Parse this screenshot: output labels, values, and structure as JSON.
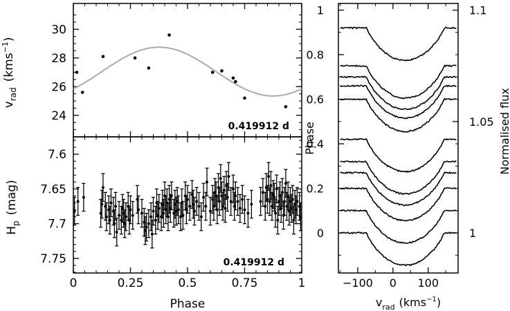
{
  "chart_data": [
    {
      "type": "scatter",
      "panel": "top-left",
      "ylabel": "v",
      "ylabel_sub": "rad",
      "ylabel_unit": "(kms",
      "ylabel_unit_sup": "−1",
      "ylabel_unit_close": ")",
      "annotation": "0.419912 d",
      "xlim": [
        0,
        1
      ],
      "ylim": [
        22.5,
        31.8
      ],
      "yticks": [
        24,
        26,
        28,
        30
      ],
      "ytick_labels": [
        "24",
        "26",
        "28",
        "30"
      ],
      "points": [
        {
          "x": 0.015,
          "y": 27.0
        },
        {
          "x": 0.04,
          "y": 25.6
        },
        {
          "x": 0.13,
          "y": 28.1
        },
        {
          "x": 0.27,
          "y": 28.0
        },
        {
          "x": 0.33,
          "y": 27.3
        },
        {
          "x": 0.42,
          "y": 29.6
        },
        {
          "x": 0.61,
          "y": 27.0
        },
        {
          "x": 0.65,
          "y": 27.1
        },
        {
          "x": 0.7,
          "y": 26.6
        },
        {
          "x": 0.71,
          "y": 26.35
        },
        {
          "x": 0.75,
          "y": 25.2
        },
        {
          "x": 0.93,
          "y": 24.6
        }
      ],
      "fit_curve": {
        "mean": 27.05,
        "amplitude": 1.7,
        "phase_of_max": 0.375,
        "color": "#aaaaaa"
      }
    },
    {
      "type": "scatter",
      "panel": "bottom-left",
      "ylabel": "H",
      "ylabel_sub": "p",
      "ylabel_unit": "(mag)",
      "xlabel": "Phase",
      "annotation": "0.419912 d",
      "xlim": [
        0,
        1
      ],
      "ylim": [
        7.771,
        7.575
      ],
      "yticks": [
        7.6,
        7.65,
        7.7,
        7.75
      ],
      "ytick_labels": [
        "7.6",
        "7.65",
        "7.7",
        "7.75"
      ],
      "xticks": [
        0,
        0.25,
        0.5,
        0.75,
        1
      ],
      "xtick_labels": [
        "0",
        "0.25",
        "0.5",
        "0.75",
        "1"
      ],
      "error_bar": 0.02,
      "points": [
        {
          "x": 0.005,
          "y": 7.682
        },
        {
          "x": 0.02,
          "y": 7.668
        },
        {
          "x": 0.045,
          "y": 7.662
        },
        {
          "x": 0.12,
          "y": 7.685
        },
        {
          "x": 0.125,
          "y": 7.672
        },
        {
          "x": 0.13,
          "y": 7.648
        },
        {
          "x": 0.14,
          "y": 7.675
        },
        {
          "x": 0.145,
          "y": 7.69
        },
        {
          "x": 0.155,
          "y": 7.68
        },
        {
          "x": 0.16,
          "y": 7.695
        },
        {
          "x": 0.165,
          "y": 7.67
        },
        {
          "x": 0.175,
          "y": 7.682
        },
        {
          "x": 0.18,
          "y": 7.7
        },
        {
          "x": 0.185,
          "y": 7.675
        },
        {
          "x": 0.19,
          "y": 7.712
        },
        {
          "x": 0.2,
          "y": 7.688
        },
        {
          "x": 0.21,
          "y": 7.695
        },
        {
          "x": 0.215,
          "y": 7.678
        },
        {
          "x": 0.22,
          "y": 7.685
        },
        {
          "x": 0.225,
          "y": 7.7
        },
        {
          "x": 0.23,
          "y": 7.69
        },
        {
          "x": 0.24,
          "y": 7.675
        },
        {
          "x": 0.245,
          "y": 7.695
        },
        {
          "x": 0.25,
          "y": 7.68
        },
        {
          "x": 0.26,
          "y": 7.688
        },
        {
          "x": 0.28,
          "y": 7.665
        },
        {
          "x": 0.285,
          "y": 7.68
        },
        {
          "x": 0.3,
          "y": 7.685
        },
        {
          "x": 0.31,
          "y": 7.698
        },
        {
          "x": 0.315,
          "y": 7.71
        },
        {
          "x": 0.32,
          "y": 7.705
        },
        {
          "x": 0.33,
          "y": 7.7
        },
        {
          "x": 0.34,
          "y": 7.69
        },
        {
          "x": 0.345,
          "y": 7.715
        },
        {
          "x": 0.35,
          "y": 7.682
        },
        {
          "x": 0.36,
          "y": 7.695
        },
        {
          "x": 0.365,
          "y": 7.67
        },
        {
          "x": 0.37,
          "y": 7.688
        },
        {
          "x": 0.375,
          "y": 7.678
        },
        {
          "x": 0.385,
          "y": 7.69
        },
        {
          "x": 0.39,
          "y": 7.672
        },
        {
          "x": 0.395,
          "y": 7.685
        },
        {
          "x": 0.4,
          "y": 7.66
        },
        {
          "x": 0.405,
          "y": 7.68
        },
        {
          "x": 0.41,
          "y": 7.67
        },
        {
          "x": 0.415,
          "y": 7.69
        },
        {
          "x": 0.42,
          "y": 7.665
        },
        {
          "x": 0.425,
          "y": 7.678
        },
        {
          "x": 0.43,
          "y": 7.66
        },
        {
          "x": 0.44,
          "y": 7.685
        },
        {
          "x": 0.445,
          "y": 7.672
        },
        {
          "x": 0.45,
          "y": 7.682
        },
        {
          "x": 0.455,
          "y": 7.668
        },
        {
          "x": 0.46,
          "y": 7.68
        },
        {
          "x": 0.47,
          "y": 7.69
        },
        {
          "x": 0.475,
          "y": 7.67
        },
        {
          "x": 0.48,
          "y": 7.688
        },
        {
          "x": 0.49,
          "y": 7.66
        },
        {
          "x": 0.495,
          "y": 7.68
        },
        {
          "x": 0.5,
          "y": 7.665
        },
        {
          "x": 0.51,
          "y": 7.675
        },
        {
          "x": 0.52,
          "y": 7.658
        },
        {
          "x": 0.525,
          "y": 7.672
        },
        {
          "x": 0.53,
          "y": 7.682
        },
        {
          "x": 0.54,
          "y": 7.668
        },
        {
          "x": 0.55,
          "y": 7.675
        },
        {
          "x": 0.56,
          "y": 7.69
        },
        {
          "x": 0.57,
          "y": 7.662
        },
        {
          "x": 0.58,
          "y": 7.675
        },
        {
          "x": 0.585,
          "y": 7.64
        },
        {
          "x": 0.6,
          "y": 7.682
        },
        {
          "x": 0.61,
          "y": 7.665
        },
        {
          "x": 0.615,
          "y": 7.675
        },
        {
          "x": 0.62,
          "y": 7.655
        },
        {
          "x": 0.625,
          "y": 7.66
        },
        {
          "x": 0.63,
          "y": 7.68
        },
        {
          "x": 0.635,
          "y": 7.648
        },
        {
          "x": 0.64,
          "y": 7.668
        },
        {
          "x": 0.645,
          "y": 7.635
        },
        {
          "x": 0.65,
          "y": 7.66
        },
        {
          "x": 0.655,
          "y": 7.675
        },
        {
          "x": 0.66,
          "y": 7.652
        },
        {
          "x": 0.665,
          "y": 7.678
        },
        {
          "x": 0.67,
          "y": 7.645
        },
        {
          "x": 0.675,
          "y": 7.662
        },
        {
          "x": 0.68,
          "y": 7.632
        },
        {
          "x": 0.69,
          "y": 7.668
        },
        {
          "x": 0.7,
          "y": 7.65
        },
        {
          "x": 0.705,
          "y": 7.675
        },
        {
          "x": 0.71,
          "y": 7.66
        },
        {
          "x": 0.72,
          "y": 7.668
        },
        {
          "x": 0.73,
          "y": 7.678
        },
        {
          "x": 0.74,
          "y": 7.665
        },
        {
          "x": 0.75,
          "y": 7.68
        },
        {
          "x": 0.765,
          "y": 7.685
        },
        {
          "x": 0.78,
          "y": 7.672
        },
        {
          "x": 0.82,
          "y": 7.668
        },
        {
          "x": 0.83,
          "y": 7.655
        },
        {
          "x": 0.84,
          "y": 7.675
        },
        {
          "x": 0.845,
          "y": 7.648
        },
        {
          "x": 0.85,
          "y": 7.665
        },
        {
          "x": 0.855,
          "y": 7.632
        },
        {
          "x": 0.86,
          "y": 7.668
        },
        {
          "x": 0.865,
          "y": 7.645
        },
        {
          "x": 0.87,
          "y": 7.675
        },
        {
          "x": 0.875,
          "y": 7.658
        },
        {
          "x": 0.88,
          "y": 7.662
        },
        {
          "x": 0.885,
          "y": 7.685
        },
        {
          "x": 0.89,
          "y": 7.65
        },
        {
          "x": 0.895,
          "y": 7.695
        },
        {
          "x": 0.9,
          "y": 7.668
        },
        {
          "x": 0.905,
          "y": 7.66
        },
        {
          "x": 0.91,
          "y": 7.678
        },
        {
          "x": 0.915,
          "y": 7.655
        },
        {
          "x": 0.92,
          "y": 7.688
        },
        {
          "x": 0.925,
          "y": 7.668
        },
        {
          "x": 0.93,
          "y": 7.642
        },
        {
          "x": 0.935,
          "y": 7.675
        },
        {
          "x": 0.94,
          "y": 7.66
        },
        {
          "x": 0.945,
          "y": 7.682
        },
        {
          "x": 0.95,
          "y": 7.668
        },
        {
          "x": 0.955,
          "y": 7.678
        },
        {
          "x": 0.96,
          "y": 7.665
        },
        {
          "x": 0.965,
          "y": 7.695
        },
        {
          "x": 0.97,
          "y": 7.672
        },
        {
          "x": 0.975,
          "y": 7.68
        },
        {
          "x": 0.98,
          "y": 7.668
        },
        {
          "x": 0.99,
          "y": 7.675
        },
        {
          "x": 0.995,
          "y": 7.69
        }
      ]
    },
    {
      "type": "line",
      "panel": "right",
      "ylabel_left": "Phase",
      "ylabel_right": "Normalised flux",
      "xlabel": "v",
      "xlabel_sub": "rad",
      "xlabel_unit": "(kms",
      "xlabel_unit_sup": "−1",
      "xlabel_unit_close": ")",
      "xlim": [
        -155,
        185
      ],
      "xticks": [
        -100,
        0,
        100
      ],
      "xtick_labels": [
        "−100",
        "0",
        "100"
      ],
      "phase_lim": [
        -0.18,
        1.03
      ],
      "yticks_left": [
        0,
        0.2,
        0.4,
        0.6,
        0.8,
        1
      ],
      "ytick_labels_left": [
        "0",
        "0.2",
        "0.4",
        "0.6",
        "0.8",
        "1"
      ],
      "yticks_right": [
        1,
        1.05,
        1.1
      ],
      "ytick_labels_right": [
        "1",
        "1.05",
        "1.1"
      ],
      "flux_scale": {
        "phase_at_1": 0.0,
        "phase_per_0_05": 0.5
      },
      "profile": {
        "center": 35,
        "halfwidth": 110,
        "depth_phase_units": 0.145
      },
      "offsets": [
        0.0,
        0.1,
        0.2,
        0.27,
        0.32,
        0.42,
        0.6,
        0.66,
        0.7,
        0.75,
        0.92
      ]
    }
  ]
}
